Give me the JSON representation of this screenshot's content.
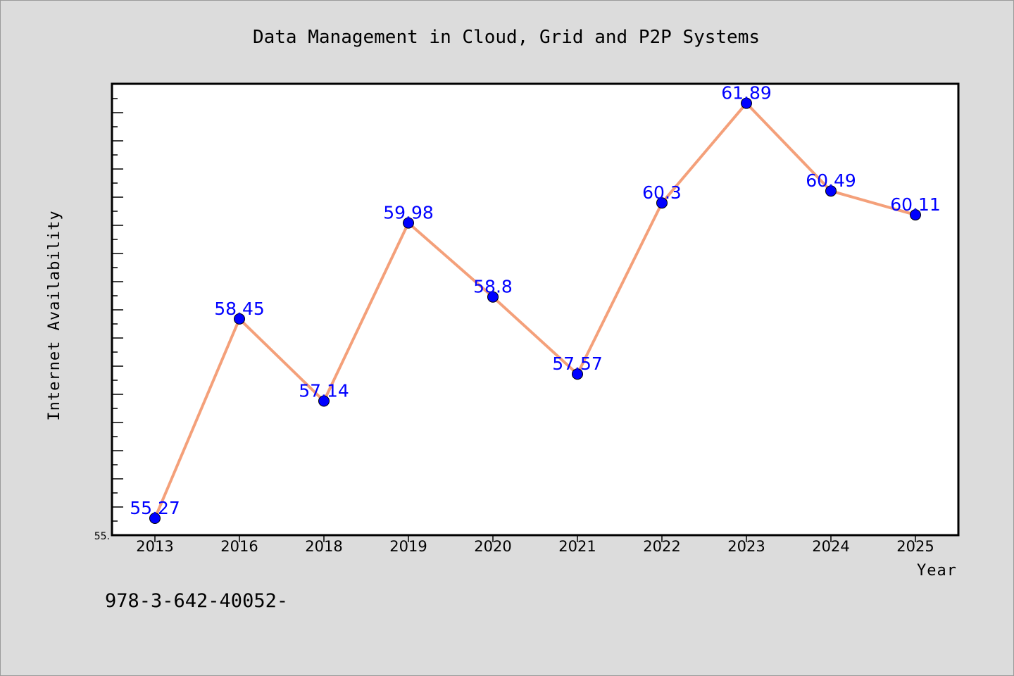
{
  "chart_data": {
    "type": "line",
    "title": "Data Management in Cloud, Grid and P2P Systems",
    "xlabel": "Year",
    "ylabel": "Internet Availability",
    "categories": [
      "2013",
      "2016",
      "2018",
      "2019",
      "2020",
      "2021",
      "2022",
      "2023",
      "2024",
      "2025"
    ],
    "values": [
      55.27,
      58.45,
      57.14,
      59.98,
      58.8,
      57.57,
      60.3,
      61.89,
      60.49,
      60.11
    ],
    "data_labels": [
      "55.27",
      "58.45",
      "57.14",
      "59.98",
      "58.8",
      "57.57",
      "60.3",
      "61.89",
      "60.49",
      "60.11"
    ],
    "ylim": [
      55.0,
      62.2
    ],
    "ytick_labels": [
      "55."
    ],
    "grid": false,
    "line_color": "#f4a07a",
    "marker_color": "#0000ff"
  },
  "footer_text": "978-3-642-40052-"
}
